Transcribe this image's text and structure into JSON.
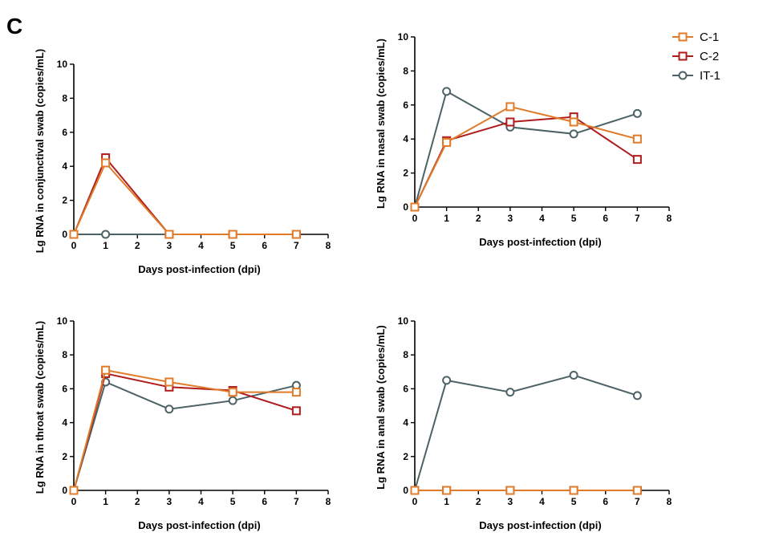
{
  "panel_label": "C",
  "colors": {
    "C-1": "#e07b2a",
    "C-2": "#b01c1c",
    "IT-1": "#4d6266"
  },
  "legend": {
    "entries": [
      {
        "name": "C-1",
        "marker": "square"
      },
      {
        "name": "C-2",
        "marker": "square"
      },
      {
        "name": "IT-1",
        "marker": "circle"
      }
    ]
  },
  "chart_data": [
    {
      "type": "line",
      "xlabel": "Days post-infection (dpi)",
      "ylabel": "Lg RNA in conjunctival swab (copies/mL)",
      "xlim": [
        0,
        8
      ],
      "ylim": [
        0,
        10
      ],
      "xticks": [
        0,
        1,
        2,
        3,
        4,
        5,
        6,
        7,
        8
      ],
      "yticks": [
        0,
        2,
        4,
        6,
        8,
        10
      ],
      "series": [
        {
          "name": "C-1",
          "marker": "square",
          "x": [
            0,
            1,
            3,
            5,
            7
          ],
          "y": [
            0,
            4.2,
            0,
            0,
            0
          ]
        },
        {
          "name": "C-2",
          "marker": "square",
          "x": [
            0,
            1,
            3,
            5,
            7
          ],
          "y": [
            0,
            4.5,
            0,
            0,
            0
          ]
        },
        {
          "name": "IT-1",
          "marker": "circle",
          "x": [
            0,
            1,
            3,
            5,
            7
          ],
          "y": [
            0,
            0,
            0,
            0,
            0
          ]
        }
      ]
    },
    {
      "type": "line",
      "xlabel": "Days post-infection (dpi)",
      "ylabel": "Lg RNA in nasal swab (copies/mL)",
      "xlim": [
        0,
        8
      ],
      "ylim": [
        0,
        10
      ],
      "xticks": [
        0,
        1,
        2,
        3,
        4,
        5,
        6,
        7,
        8
      ],
      "yticks": [
        0,
        2,
        4,
        6,
        8,
        10
      ],
      "series": [
        {
          "name": "C-1",
          "marker": "square",
          "x": [
            0,
            1,
            3,
            5,
            7
          ],
          "y": [
            0,
            3.8,
            5.9,
            5.0,
            4.0
          ]
        },
        {
          "name": "C-2",
          "marker": "square",
          "x": [
            0,
            1,
            3,
            5,
            7
          ],
          "y": [
            0,
            3.9,
            5.0,
            5.3,
            2.8
          ]
        },
        {
          "name": "IT-1",
          "marker": "circle",
          "x": [
            0,
            1,
            3,
            5,
            7
          ],
          "y": [
            0,
            6.8,
            4.7,
            4.3,
            5.5
          ]
        }
      ]
    },
    {
      "type": "line",
      "xlabel": "Days post-infection (dpi)",
      "ylabel": "Lg RNA in throat swab (copies/mL)",
      "xlim": [
        0,
        8
      ],
      "ylim": [
        0,
        10
      ],
      "xticks": [
        0,
        1,
        2,
        3,
        4,
        5,
        6,
        7,
        8
      ],
      "yticks": [
        0,
        2,
        4,
        6,
        8,
        10
      ],
      "series": [
        {
          "name": "C-1",
          "marker": "square",
          "x": [
            0,
            1,
            3,
            5,
            7
          ],
          "y": [
            0,
            7.1,
            6.4,
            5.8,
            5.8
          ]
        },
        {
          "name": "C-2",
          "marker": "square",
          "x": [
            0,
            1,
            3,
            5,
            7
          ],
          "y": [
            0,
            6.9,
            6.1,
            5.9,
            4.7
          ]
        },
        {
          "name": "IT-1",
          "marker": "circle",
          "x": [
            0,
            1,
            3,
            5,
            7
          ],
          "y": [
            0,
            6.4,
            4.8,
            5.3,
            6.2
          ]
        }
      ]
    },
    {
      "type": "line",
      "xlabel": "Days post-infection (dpi)",
      "ylabel": "Lg RNA in anal swab (copies/mL)",
      "xlim": [
        0,
        8
      ],
      "ylim": [
        0,
        10
      ],
      "xticks": [
        0,
        1,
        2,
        3,
        4,
        5,
        6,
        7,
        8
      ],
      "yticks": [
        0,
        2,
        4,
        6,
        8,
        10
      ],
      "series": [
        {
          "name": "C-1",
          "marker": "square",
          "x": [
            0,
            1,
            3,
            5,
            7
          ],
          "y": [
            0,
            0,
            0,
            0,
            0
          ]
        },
        {
          "name": "C-2",
          "marker": "square",
          "x": [
            0,
            1,
            3,
            5,
            7
          ],
          "y": [
            0,
            0,
            0,
            0,
            0
          ]
        },
        {
          "name": "IT-1",
          "marker": "circle",
          "x": [
            0,
            1,
            3,
            5,
            7
          ],
          "y": [
            0,
            6.5,
            5.8,
            6.8,
            5.6
          ]
        }
      ]
    }
  ]
}
